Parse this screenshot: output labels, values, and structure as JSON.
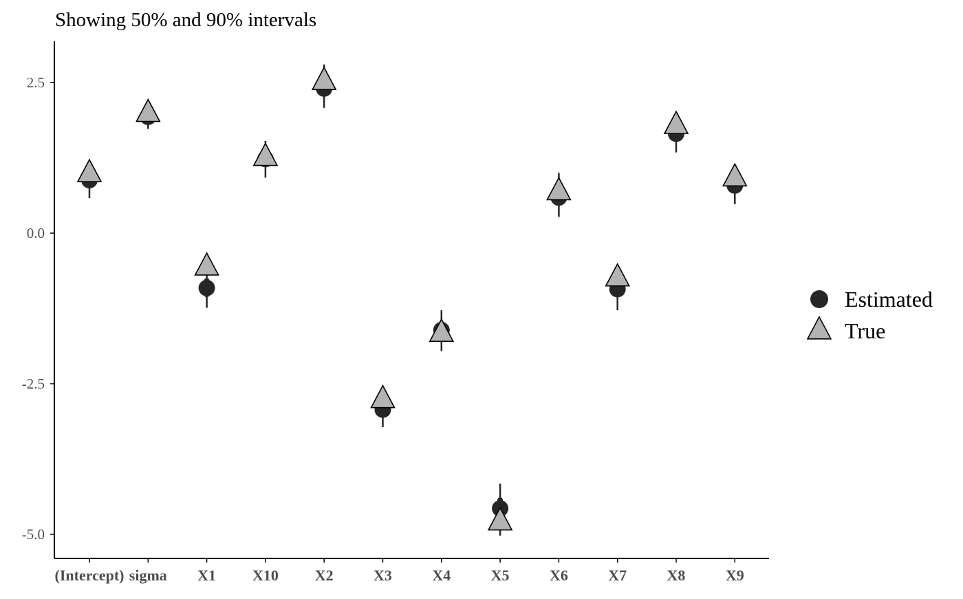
{
  "chart_data": {
    "type": "scatter",
    "title": "",
    "subtitle": "Showing 50% and 90% intervals",
    "xlabel": "",
    "ylabel": "",
    "categories": [
      "(Intercept)",
      "sigma",
      "X1",
      "X10",
      "X2",
      "X3",
      "X4",
      "X5",
      "X6",
      "X7",
      "X8",
      "X9"
    ],
    "ylim": [
      -5.4,
      3.15
    ],
    "yticks": [
      2.5,
      0.0,
      -2.5,
      -5.0
    ],
    "ytick_labels": [
      "2.5",
      "0.0",
      "-2.5",
      "-5.0"
    ],
    "grid": false,
    "legend_position": "right",
    "colors": {
      "estimated": "#262626",
      "true_fill": "#b3b3b3",
      "true_stroke": "#000000",
      "axis": "#000000",
      "tick_label": "#4d4d4d"
    },
    "series": [
      {
        "name": "Estimated",
        "marker": "circle",
        "values": [
          0.88,
          1.93,
          -0.91,
          1.23,
          2.4,
          -2.93,
          -1.61,
          -4.57,
          0.59,
          -0.93,
          1.65,
          0.79
        ],
        "interval_50": [
          [
            0.82,
            0.95
          ],
          [
            1.9,
            1.97
          ],
          [
            -1.02,
            -0.79
          ],
          [
            1.17,
            1.3
          ],
          [
            2.33,
            2.49
          ],
          [
            -3.01,
            -2.86
          ],
          [
            -1.72,
            -1.5
          ],
          [
            -4.68,
            -4.43
          ],
          [
            0.51,
            0.67
          ],
          [
            -1.02,
            -0.83
          ],
          [
            1.58,
            1.72
          ],
          [
            0.73,
            0.86
          ]
        ],
        "interval_90": [
          [
            0.58,
            1.04
          ],
          [
            1.73,
            1.96
          ],
          [
            -1.24,
            -0.66
          ],
          [
            0.92,
            1.53
          ],
          [
            2.08,
            2.8
          ],
          [
            -3.22,
            -2.72
          ],
          [
            -1.96,
            -1.28
          ],
          [
            -5.02,
            -4.16
          ],
          [
            0.27,
            1.0
          ],
          [
            -1.28,
            -0.53
          ],
          [
            1.34,
            1.8
          ],
          [
            0.48,
            0.99
          ]
        ]
      },
      {
        "name": "True",
        "marker": "triangle",
        "values": [
          1.0,
          2.0,
          -0.55,
          1.27,
          2.53,
          -2.75,
          -1.65,
          -4.78,
          0.7,
          -0.73,
          1.8,
          0.93
        ]
      }
    ]
  }
}
